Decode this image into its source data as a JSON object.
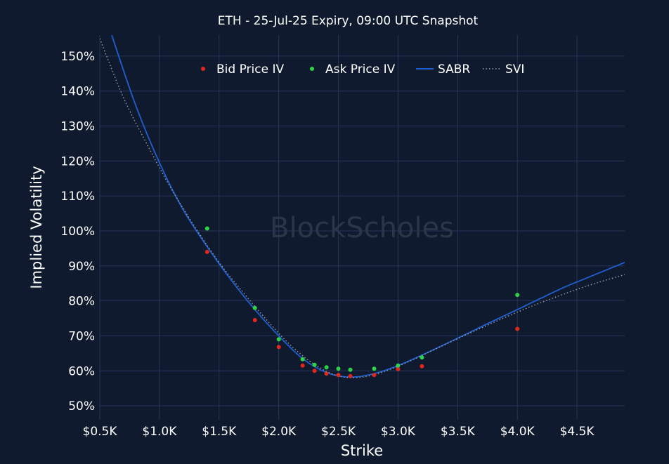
{
  "chart_data": {
    "type": "scatter",
    "title": "ETH - 25-Jul-25 Expiry, 09:00 UTC Snapshot",
    "watermark": "BlockScholes",
    "xlabel": "Strike",
    "ylabel": "Implied Volatility",
    "xlim": [
      500,
      4900
    ],
    "ylim": [
      46,
      156
    ],
    "x_ticks": [
      500,
      1000,
      1500,
      2000,
      2500,
      3000,
      3500,
      4000,
      4500
    ],
    "x_tick_labels": [
      "$0.5K",
      "$1.0K",
      "$1.5K",
      "$2.0K",
      "$2.5K",
      "$3.0K",
      "$3.5K",
      "$4.0K",
      "$4.5K"
    ],
    "y_ticks": [
      50,
      60,
      70,
      80,
      90,
      100,
      110,
      120,
      130,
      140,
      150
    ],
    "y_tick_labels": [
      "50%",
      "60%",
      "70%",
      "80%",
      "90%",
      "100%",
      "110%",
      "120%",
      "130%",
      "140%",
      "150%"
    ],
    "grid": true,
    "legend_position": "top",
    "series": [
      {
        "name": "Bid Price IV",
        "kind": "markers",
        "color": "#e0281e",
        "x": [
          1400,
          1800,
          2000,
          2200,
          2300,
          2400,
          2500,
          2600,
          2800,
          3000,
          3200,
          4000
        ],
        "y": [
          94.0,
          74.5,
          66.8,
          61.5,
          60.0,
          59.2,
          58.8,
          58.5,
          58.8,
          60.5,
          61.3,
          72.0
        ]
      },
      {
        "name": "Ask Price IV",
        "kind": "markers",
        "color": "#2ed246",
        "x": [
          1400,
          1800,
          2000,
          2200,
          2300,
          2400,
          2500,
          2600,
          2800,
          3000,
          3200,
          4000
        ],
        "y": [
          100.7,
          78.0,
          69.0,
          63.3,
          61.7,
          61.0,
          60.6,
          60.3,
          60.6,
          61.5,
          63.8,
          81.7
        ]
      },
      {
        "name": "SABR",
        "kind": "line",
        "color": "#1f5fd0",
        "x": [
          600,
          800,
          1000,
          1200,
          1400,
          1600,
          1800,
          2000,
          2200,
          2400,
          2600,
          2800,
          3000,
          3200,
          3400,
          3600,
          3800,
          4000,
          4200,
          4400,
          4600,
          4900
        ],
        "y": [
          156,
          136,
          119.5,
          106,
          95.5,
          86,
          77.5,
          70,
          63.5,
          59.5,
          58.2,
          59.2,
          61.5,
          64.5,
          67.7,
          71,
          74.3,
          77.5,
          80.8,
          84,
          86.8,
          91
        ]
      },
      {
        "name": "SVI",
        "kind": "dotted-line",
        "color": "#9aa0aa",
        "x": [
          500,
          700,
          900,
          1100,
          1300,
          1500,
          1700,
          1900,
          2100,
          2300,
          2500,
          2700,
          2900,
          3100,
          3300,
          3500,
          3700,
          3900,
          4100,
          4300,
          4500,
          4700,
          4900
        ],
        "y": [
          155,
          138,
          124.5,
          112,
          101,
          91,
          82.5,
          74.5,
          67.3,
          61.8,
          58.5,
          58.2,
          60,
          62.8,
          66,
          69.2,
          72.3,
          75.3,
          78.2,
          80.8,
          83.3,
          85.5,
          87.5
        ]
      }
    ]
  }
}
